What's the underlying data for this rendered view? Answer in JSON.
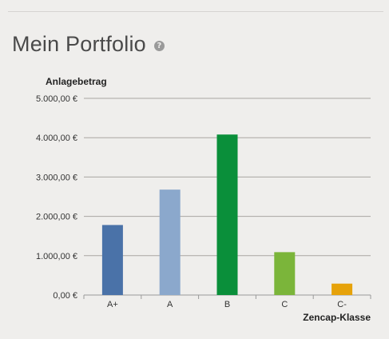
{
  "header": {
    "title": "Mein Portfolio",
    "help_icon": "question-circle-icon"
  },
  "chart_data": {
    "type": "bar",
    "ylabel": "Anlagebetrag",
    "xlabel": "Zencap-Klasse",
    "ylim": [
      0,
      5000
    ],
    "yticks": [
      "0,00 €",
      "1.000,00 €",
      "2.000,00 €",
      "3.000,00 €",
      "4.000,00 €",
      "5.000,00 €"
    ],
    "categories": [
      "A+",
      "A",
      "B",
      "C",
      "C-"
    ],
    "values": [
      1780,
      2680,
      4080,
      1090,
      290
    ],
    "colors": [
      "#4a72a8",
      "#8ba8cc",
      "#0a8f3a",
      "#7bb53a",
      "#e6a20a"
    ],
    "grid": true
  }
}
